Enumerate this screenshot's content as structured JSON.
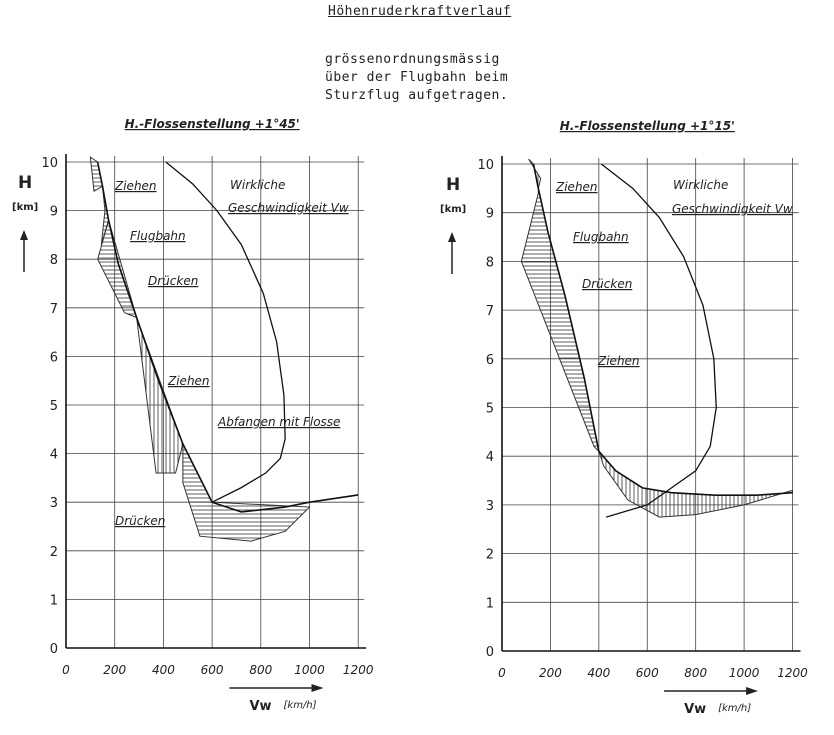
{
  "header": {
    "title": "Höhenruderkraftverlauf",
    "subtitle_lines": [
      "grössenordnungsmässig",
      "über der Flugbahn beim",
      "Sturzflug aufgetragen."
    ]
  },
  "chart_data": [
    {
      "type": "line",
      "title": "H.-Flossenstellung +1°45'",
      "ylabel": "H",
      "yunit": "[km]",
      "xlabel": "V_w",
      "xunit": "[km/h]",
      "xlim": [
        0,
        1200
      ],
      "ylim": [
        0,
        10
      ],
      "xticks": [
        0,
        200,
        400,
        600,
        800,
        1000,
        1200
      ],
      "xtick_labels": [
        "0",
        "200",
        "400",
        "600",
        "800",
        "1000",
        "1200"
      ],
      "yticks": [
        0,
        1,
        2,
        3,
        4,
        5,
        6,
        7,
        8,
        9,
        10
      ],
      "ytick_labels": [
        "0",
        "1",
        "2",
        "3",
        "4",
        "5",
        "6",
        "7",
        "8",
        "9",
        "10"
      ],
      "grid": true,
      "series": [
        {
          "name": "Flugbahn",
          "x": [
            130,
            150,
            175,
            215,
            290,
            380,
            480,
            600,
            720,
            900,
            1000,
            1200
          ],
          "y": [
            10,
            9.5,
            8.8,
            7.9,
            6.8,
            5.5,
            4.2,
            3.0,
            2.8,
            2.9,
            3.0,
            3.15
          ]
        },
        {
          "name": "Wirkliche Geschwindigkeit V_w",
          "x": [
            410,
            520,
            620,
            720,
            810,
            865,
            895,
            900,
            880,
            820,
            720,
            600
          ],
          "y": [
            10,
            9.55,
            9.0,
            8.3,
            7.3,
            6.3,
            5.2,
            4.3,
            3.9,
            3.6,
            3.3,
            3.0
          ]
        }
      ],
      "annotations": [
        "Ziehen",
        "Flugbahn",
        "Drücken",
        "Ziehen",
        "Abfangen mit Flosse",
        "Drücken",
        "Wirkliche",
        "Geschwindigkeit V_w"
      ]
    },
    {
      "type": "line",
      "title": "H.-Flossenstellung +1°15'",
      "ylabel": "H",
      "yunit": "[km]",
      "xlabel": "V_w",
      "xunit": "[km/h]",
      "xlim": [
        0,
        1200
      ],
      "ylim": [
        0,
        10
      ],
      "xticks": [
        0,
        200,
        400,
        600,
        800,
        1000,
        1200
      ],
      "xtick_labels": [
        "0",
        "200",
        "400",
        "600",
        "800",
        "1000",
        "1200"
      ],
      "yticks": [
        0,
        1,
        2,
        3,
        4,
        5,
        6,
        7,
        8,
        9,
        10
      ],
      "ytick_labels": [
        "0",
        "1",
        "2",
        "3",
        "4",
        "5",
        "6",
        "7",
        "8",
        "9",
        "10"
      ],
      "grid": true,
      "series": [
        {
          "name": "Flugbahn",
          "x": [
            130,
            150,
            190,
            260,
            340,
            400,
            470,
            580,
            700,
            880,
            1050,
            1200
          ],
          "y": [
            10,
            9.5,
            8.6,
            7.3,
            5.6,
            4.1,
            3.7,
            3.35,
            3.25,
            3.2,
            3.2,
            3.25
          ]
        },
        {
          "name": "Wirkliche Geschwindigkeit V_w",
          "x": [
            410,
            540,
            650,
            750,
            830,
            875,
            885,
            860,
            800,
            700,
            600,
            430
          ],
          "y": [
            10,
            9.5,
            8.9,
            8.1,
            7.1,
            6.0,
            5.0,
            4.2,
            3.7,
            3.35,
            3.0,
            2.75
          ]
        }
      ],
      "annotations": [
        "Ziehen",
        "Flugbahn",
        "Drücken",
        "Ziehen",
        "Wirkliche",
        "Geschwindigkeit V_w"
      ]
    }
  ]
}
